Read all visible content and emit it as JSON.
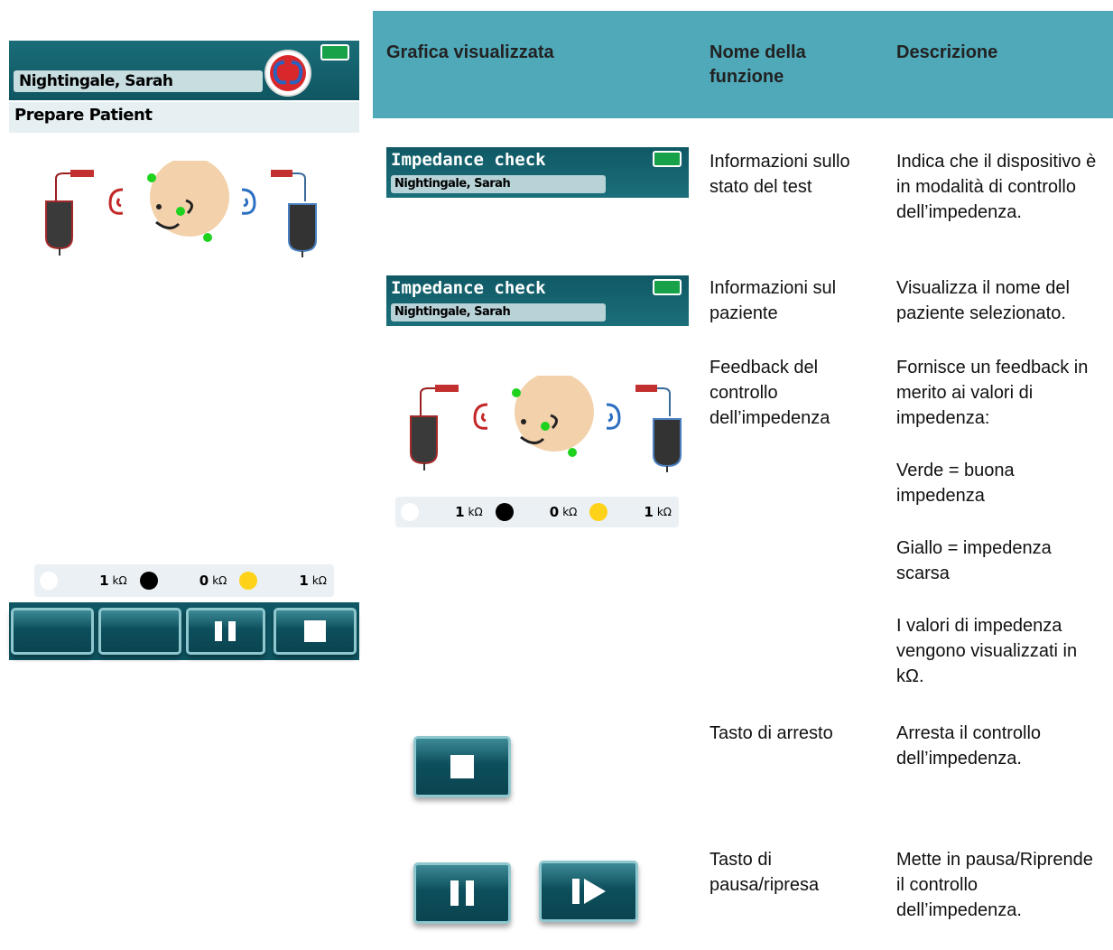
{
  "device": {
    "patient_name": "Nightingale, Sarah",
    "screen_title": "Prepare Patient",
    "impedance": [
      {
        "value": 1,
        "unit": "kΩ"
      },
      {
        "value": 0,
        "unit": "kΩ"
      },
      {
        "value": 1,
        "unit": "kΩ"
      }
    ]
  },
  "table": {
    "headers": [
      "Grafica visualizzata",
      "Nome della funzione",
      "Descrizione"
    ],
    "rows": [
      {
        "graphic": {
          "title": "Impedance check",
          "patient_name": "Nightingale, Sarah"
        },
        "name": "Informazioni sullo stato del test",
        "description": [
          "Indica che il dispositivo è in modalità di controllo dell’impedenza."
        ]
      },
      {
        "graphic": {
          "title": "Impedance check",
          "patient_name": "Nightingale, Sarah"
        },
        "name": "Informazioni sul paziente",
        "description": [
          "Visualizza il nome del paziente selezionato."
        ]
      },
      {
        "graphic": {
          "impedance": [
            {
              "value": 1,
              "unit": "kΩ"
            },
            {
              "value": 0,
              "unit": "kΩ"
            },
            {
              "value": 1,
              "unit": "kΩ"
            }
          ]
        },
        "name": "Feedback del controllo dell’impedenza",
        "description": [
          "Fornisce un feedback in merito ai valori di impedenza:",
          "Verde = buona impedenza",
          "Giallo = impedenza scarsa",
          "I valori di impedenza vengono visualizzati in kΩ."
        ]
      },
      {
        "name": "Tasto di arresto",
        "description": [
          "Arresta il controllo dell’impedenza."
        ]
      },
      {
        "name": "Tasto di pausa/ripresa",
        "description": [
          "Mette in pausa/Riprende il controllo dell’impedenza."
        ]
      }
    ]
  }
}
